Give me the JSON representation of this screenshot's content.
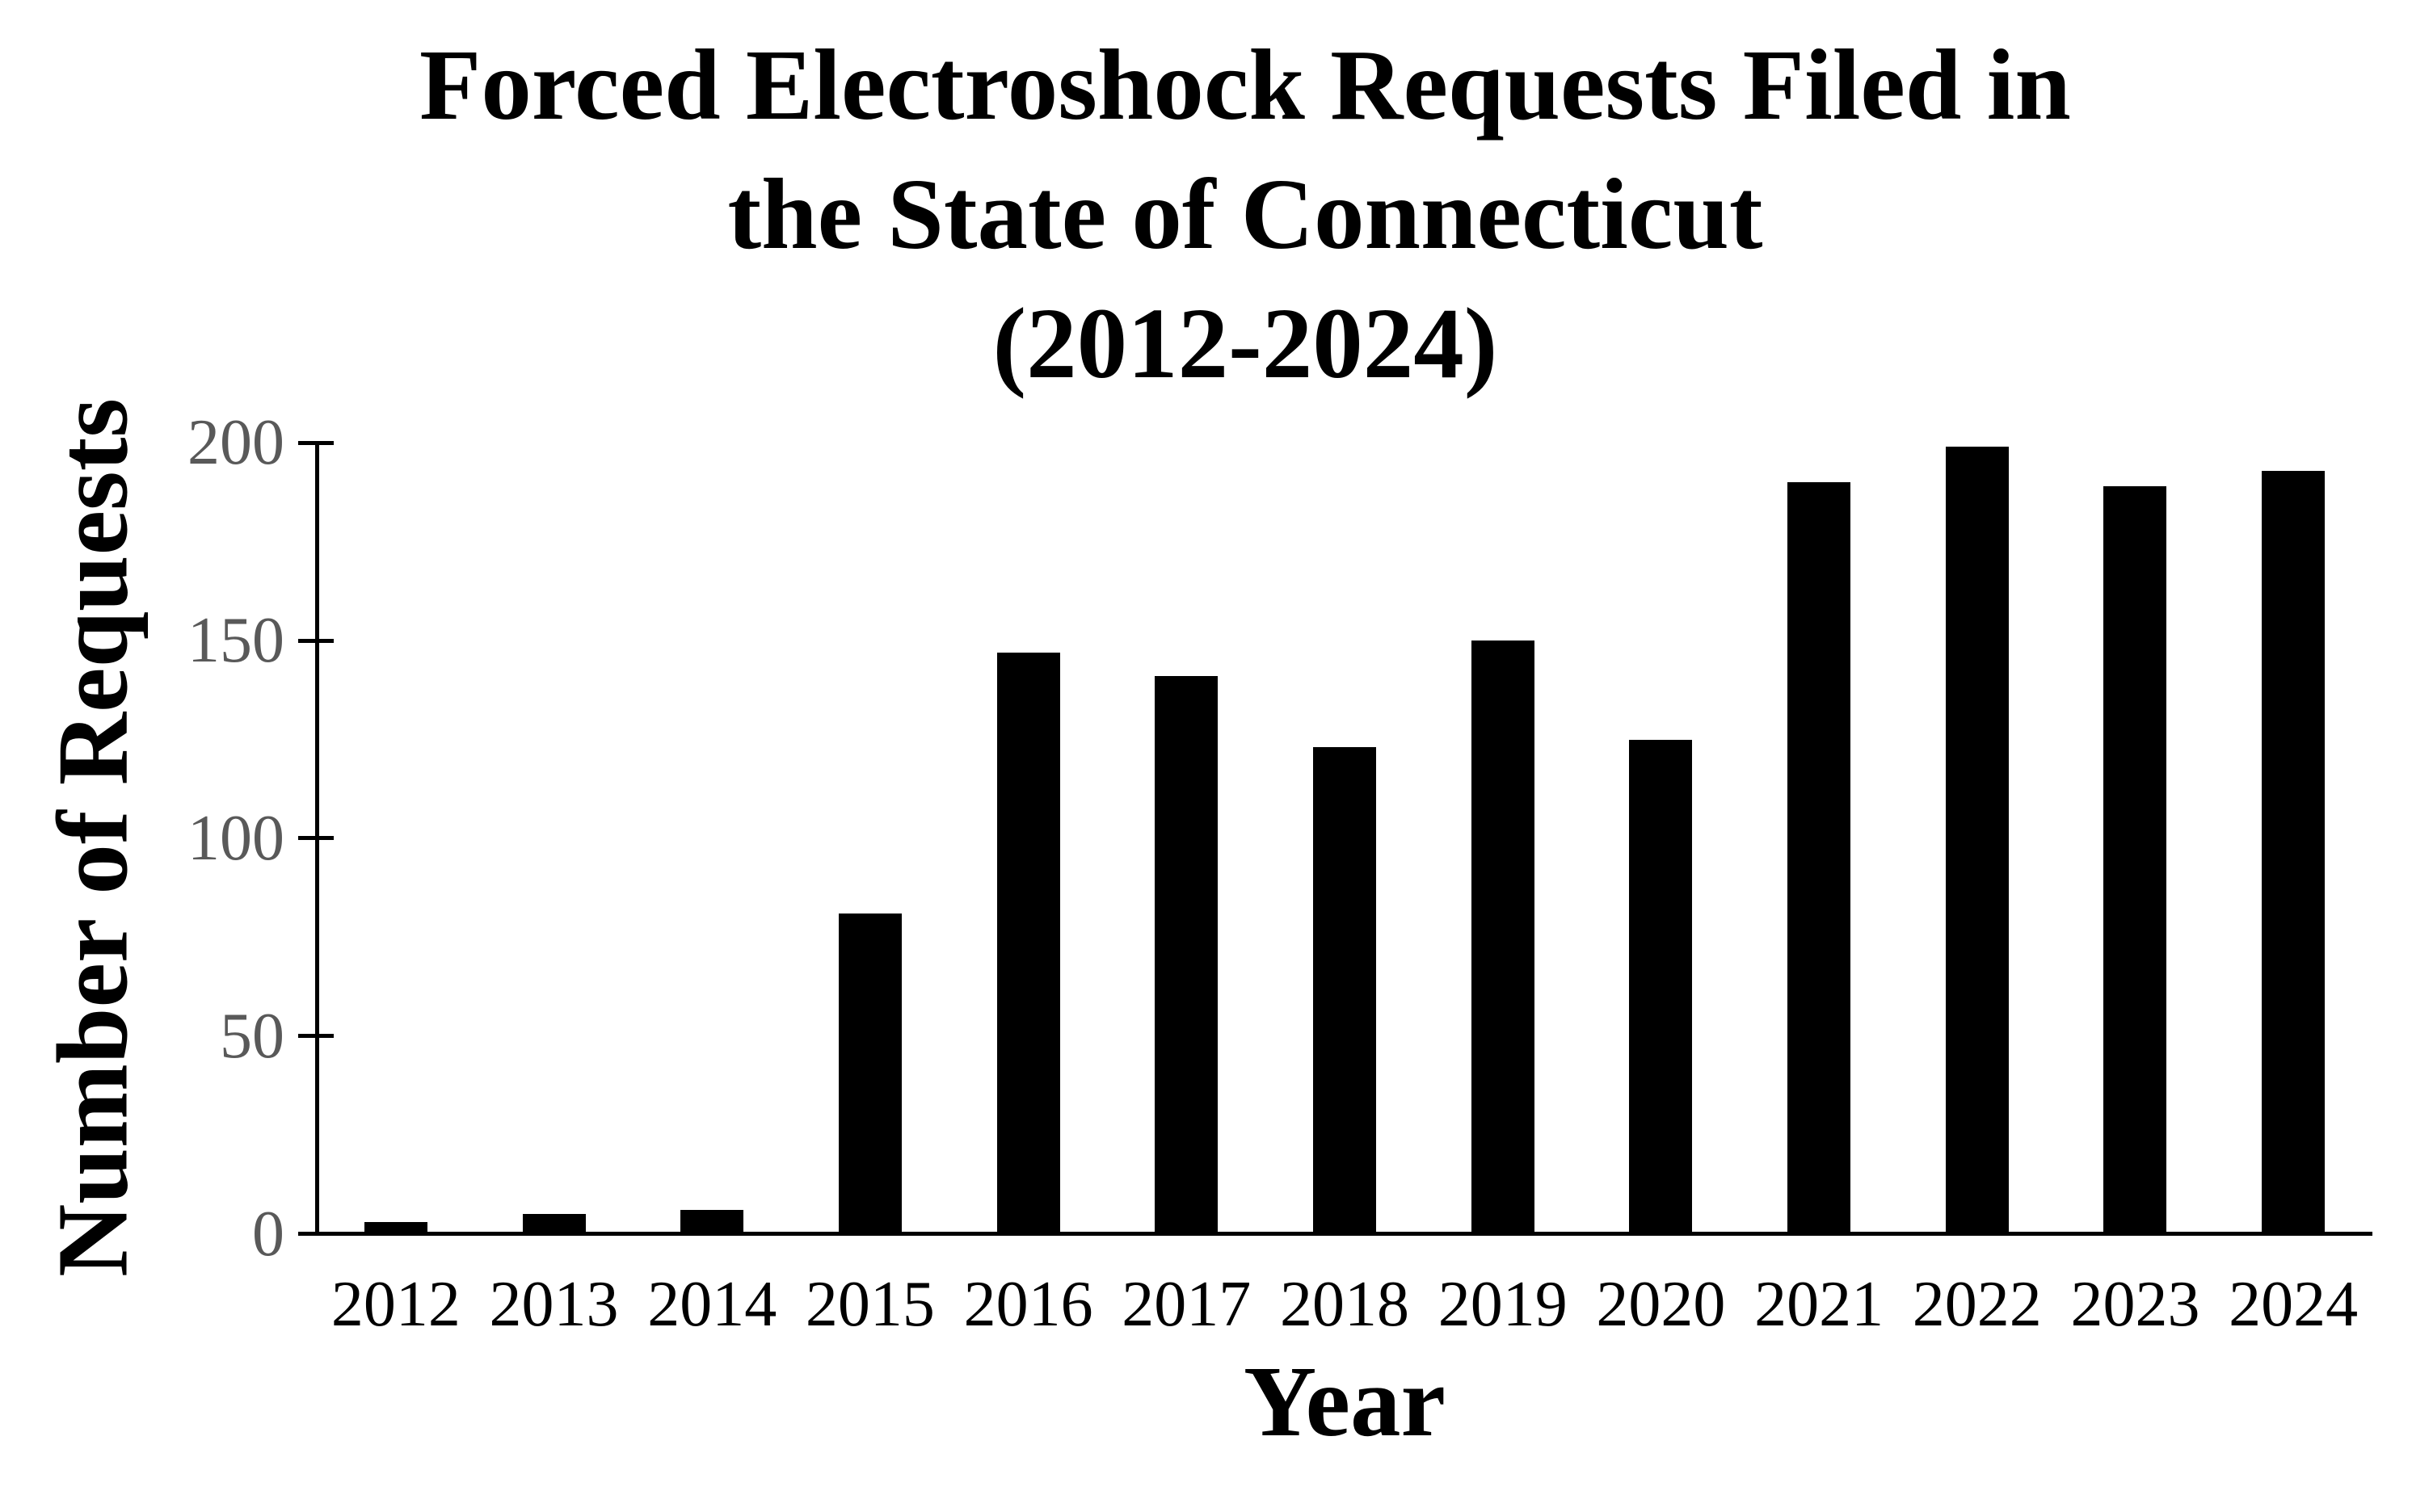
{
  "chart_data": {
    "type": "bar",
    "title": "Forced Electroshock Requests Filed in the State of Connecticut (2012-2024)",
    "title_lines": [
      "Forced Electroshock Requests Filed in",
      "the State of Connecticut",
      "(2012-2024)"
    ],
    "xlabel": "Year",
    "ylabel": "Number of Requests",
    "categories": [
      "2012",
      "2013",
      "2014",
      "2015",
      "2016",
      "2017",
      "2018",
      "2019",
      "2020",
      "2021",
      "2022",
      "2023",
      "2024"
    ],
    "values": [
      3,
      5,
      6,
      81,
      147,
      141,
      123,
      150,
      125,
      190,
      199,
      189,
      193
    ],
    "yticks": [
      0,
      50,
      100,
      150,
      200
    ],
    "ylim": [
      0,
      200
    ],
    "grid": false,
    "legend_position": "none",
    "bar_color": "#000000",
    "axis_color": "#000000",
    "ytick_label_color": "#595959",
    "xtick_label_color": "#000000",
    "background_color": "#ffffff"
  }
}
